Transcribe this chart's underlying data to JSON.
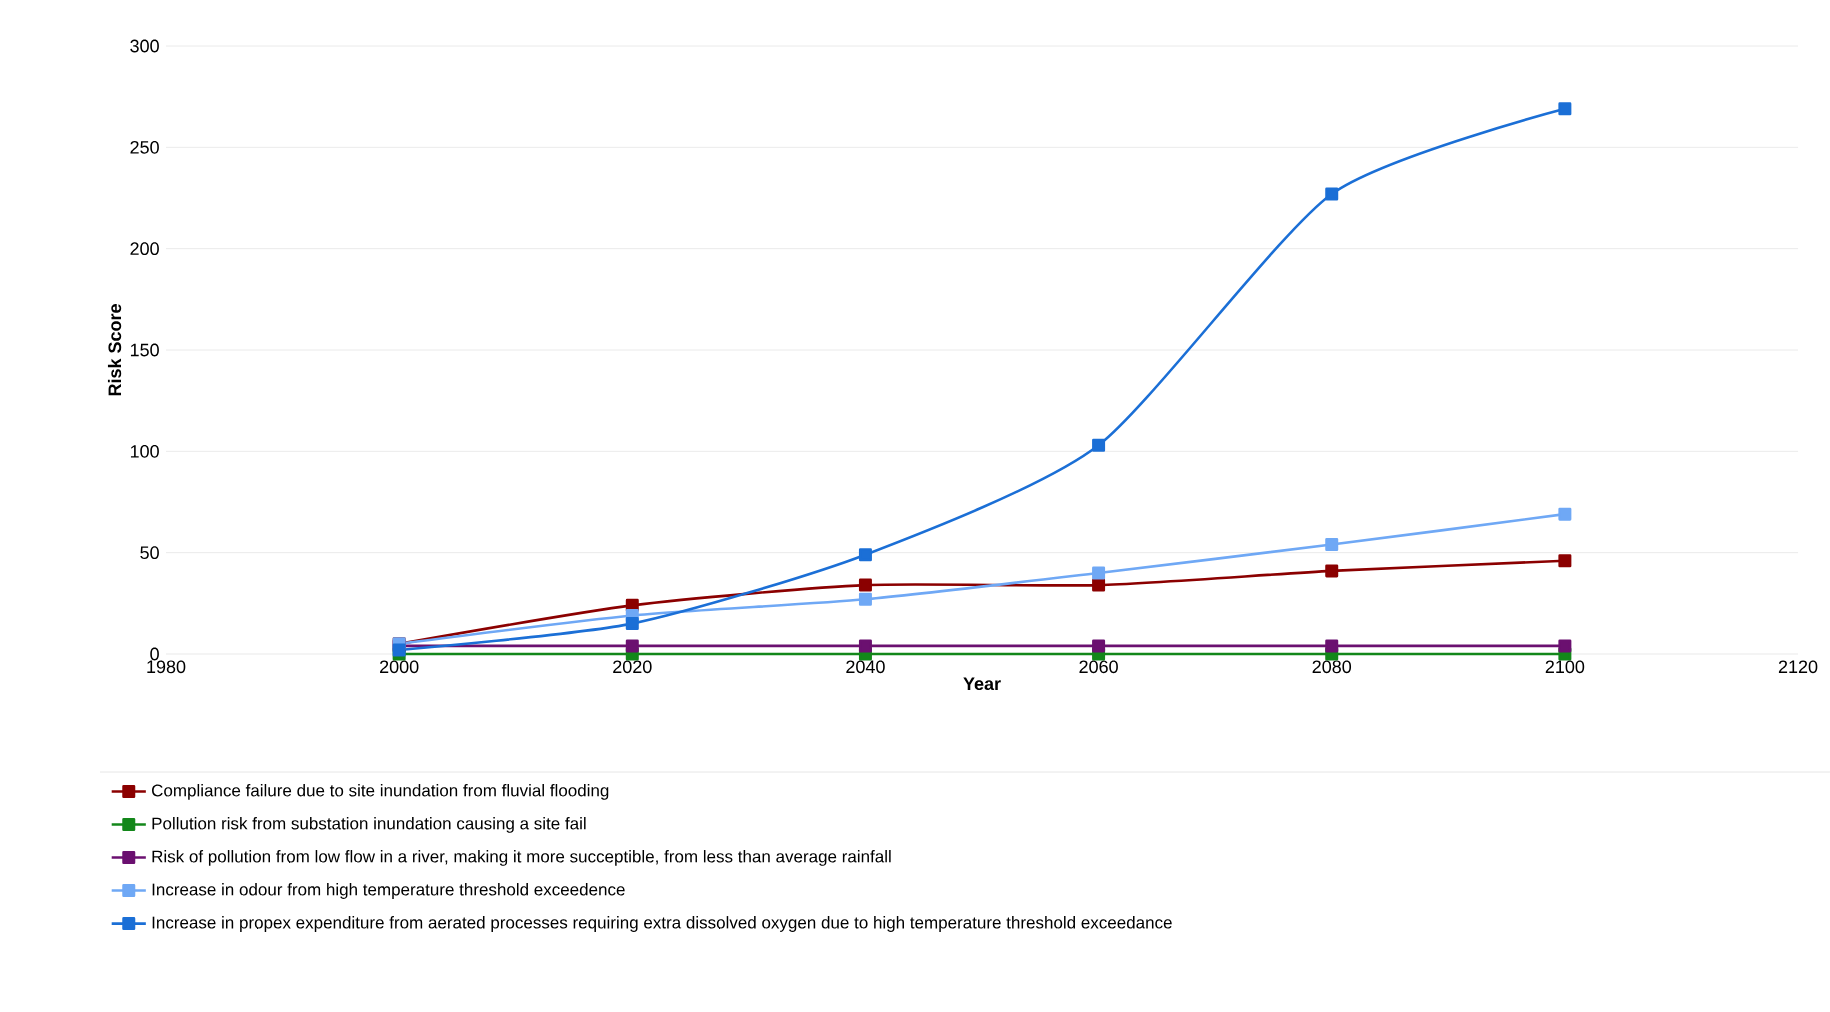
{
  "chart_data": {
    "type": "line",
    "xlabel": "Year",
    "ylabel": "Risk Score",
    "x": [
      2000,
      2020,
      2040,
      2060,
      2080,
      2100
    ],
    "series": [
      {
        "name": "Compliance failure due to site inundation from fluvial flooding",
        "color": "#8b0000",
        "values": [
          5,
          24,
          34,
          34,
          41,
          46
        ]
      },
      {
        "name": "Pollution risk from substation inundation causing a site fail",
        "color": "#13871a",
        "values": [
          0,
          0,
          0,
          0,
          0,
          0
        ]
      },
      {
        "name": "Risk of pollution from low flow in a river, making it more succeptible, from less than average rainfall",
        "color": "#6b1070",
        "values": [
          4,
          4,
          4,
          4,
          4,
          4
        ]
      },
      {
        "name": "Increase in odour from high temperature threshold exceedence",
        "color": "#6fa8f5",
        "values": [
          5,
          19,
          27,
          40,
          54,
          69
        ]
      },
      {
        "name": "Increase in propex expenditure from aerated processes requiring extra dissolved oxygen due to high temperature threshold exceedance",
        "color": "#1b6fd6",
        "values": [
          2,
          15,
          49,
          103,
          227,
          269
        ]
      }
    ],
    "xlim": [
      1980,
      2120
    ],
    "xticks": [
      1980,
      2000,
      2020,
      2040,
      2060,
      2080,
      2100,
      2120
    ],
    "ylim": [
      0,
      300
    ],
    "yticks": [
      0,
      50,
      100,
      150,
      200,
      250,
      300
    ],
    "grid": "y",
    "legend": "bottom",
    "marker": "square",
    "line_style": "solid"
  }
}
